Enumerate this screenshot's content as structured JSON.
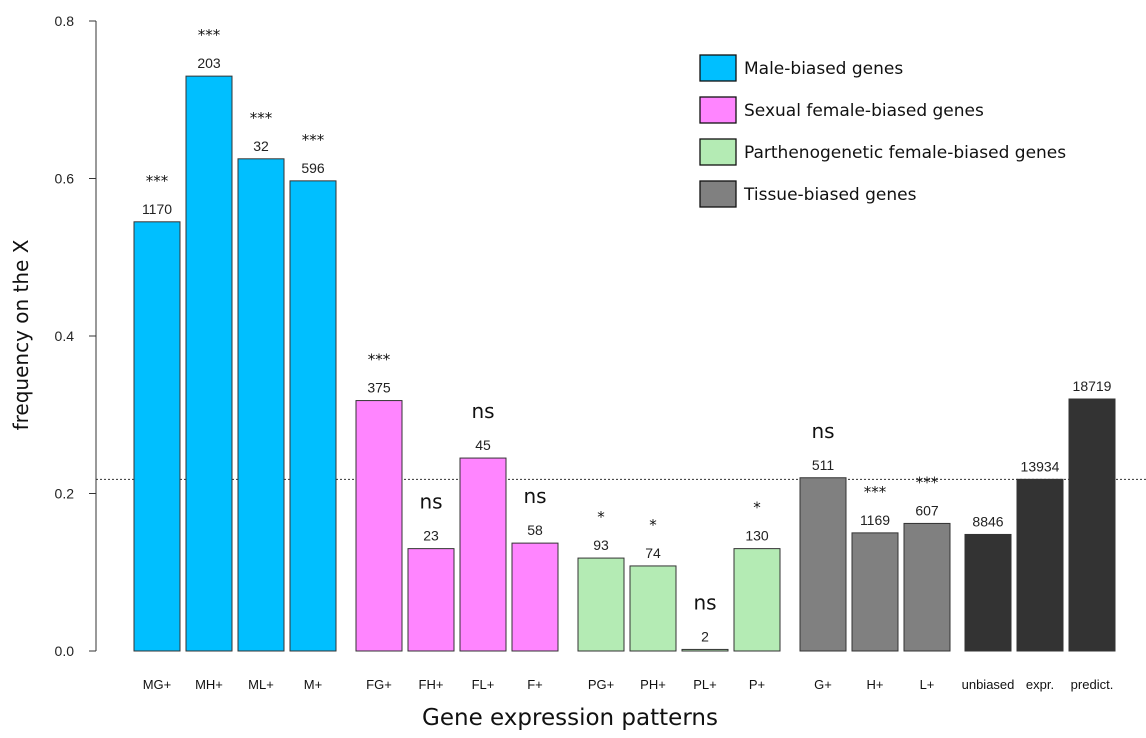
{
  "chart_data": {
    "type": "bar",
    "xlabel": "Gene expression patterns",
    "ylabel": "frequency on the X",
    "ylim": [
      0,
      0.8
    ],
    "yticks": [
      "0.0",
      "0.2",
      "0.4",
      "0.6",
      "0.8"
    ],
    "reference_line": 0.218,
    "legend": [
      {
        "label": "Male-biased genes",
        "color": "#00BFFF"
      },
      {
        "label": "Sexual female-biased genes",
        "color": "#FF85FF"
      },
      {
        "label": "Parthenogenetic female-biased genes",
        "color": "#B4EBB4"
      },
      {
        "label": "Tissue-biased genes",
        "color": "#808080"
      }
    ],
    "categories": [
      "MG+",
      "MH+",
      "ML+",
      "M+",
      "FG+",
      "FH+",
      "FL+",
      "F+",
      "PG+",
      "PH+",
      "PL+",
      "P+",
      "G+",
      "H+",
      "L+",
      "unbiased",
      "expr.",
      "predict."
    ],
    "values": [
      0.545,
      0.73,
      0.625,
      0.597,
      0.318,
      0.13,
      0.245,
      0.137,
      0.118,
      0.108,
      0.002,
      0.13,
      0.22,
      0.15,
      0.162,
      0.148,
      0.218,
      0.32
    ],
    "counts": [
      "1170",
      "203",
      "32",
      "596",
      "375",
      "23",
      "45",
      "58",
      "93",
      "74",
      "2",
      "130",
      "511",
      "1169",
      "607",
      "8846",
      "13934",
      "18719"
    ],
    "significance": [
      "***",
      "***",
      "***",
      "***",
      "***",
      "ns",
      "ns",
      "ns",
      "*",
      "*",
      "ns",
      "*",
      "ns",
      "***",
      "***",
      "",
      "",
      ""
    ],
    "colors": [
      "#00BFFF",
      "#00BFFF",
      "#00BFFF",
      "#00BFFF",
      "#FF85FF",
      "#FF85FF",
      "#FF85FF",
      "#FF85FF",
      "#B4EBB4",
      "#B4EBB4",
      "#B4EBB4",
      "#B4EBB4",
      "#808080",
      "#808080",
      "#808080",
      "#333333",
      "#333333",
      "#333333"
    ]
  }
}
